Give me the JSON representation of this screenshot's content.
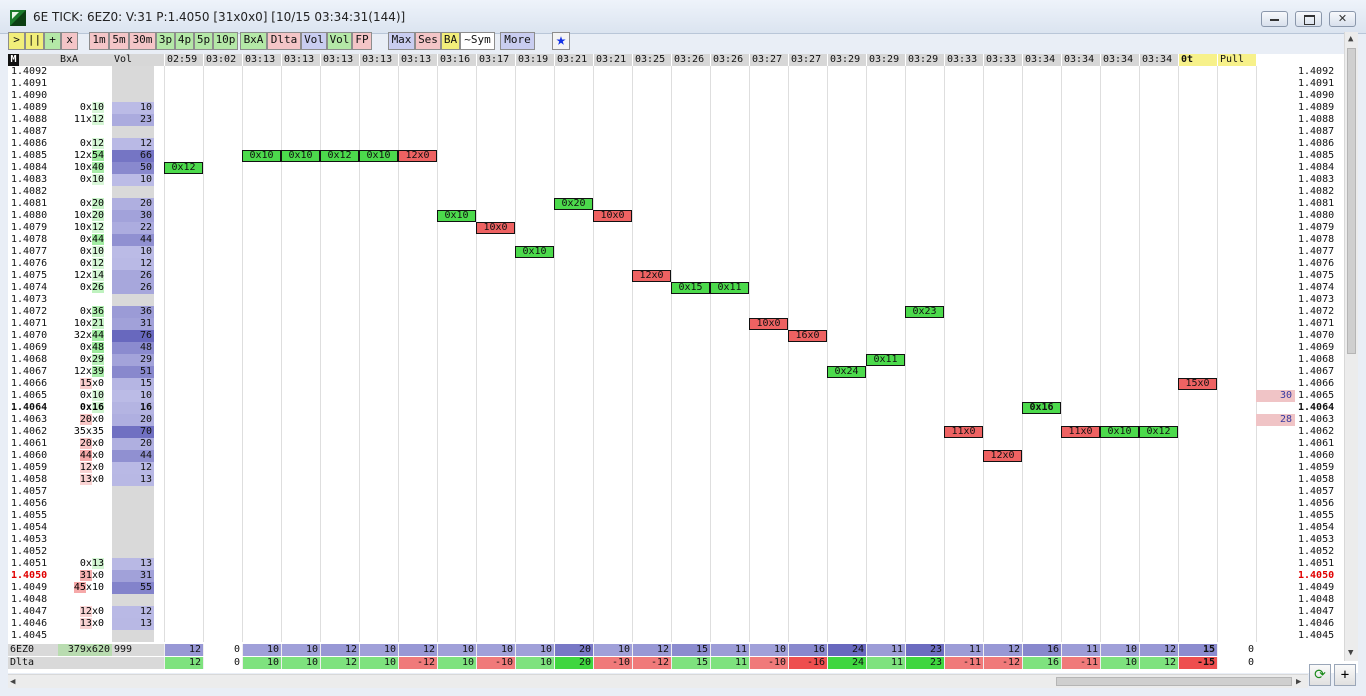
{
  "window": {
    "title": "6E TICK: 6EZ0: V:31 P:1.4050 [31x0x0] [10/15 03:34:31(144)]",
    "close_glyph": "✕"
  },
  "toolbar": [
    {
      "label": ">",
      "color": "yellow"
    },
    {
      "label": "||",
      "color": "yellow"
    },
    {
      "label": "+",
      "color": "green"
    },
    {
      "label": "x",
      "color": "pink"
    },
    {
      "label": "1m",
      "color": "pink"
    },
    {
      "label": "5m",
      "color": "pink"
    },
    {
      "label": "30m",
      "color": "pink"
    },
    {
      "label": "3p",
      "color": "green"
    },
    {
      "label": "4p",
      "color": "green"
    },
    {
      "label": "5p",
      "color": "green"
    },
    {
      "label": "10p",
      "color": "green"
    },
    {
      "label": "BxA",
      "color": "green"
    },
    {
      "label": "Dlta",
      "color": "pink"
    },
    {
      "label": "Vol",
      "color": "blue"
    },
    {
      "label": "Vol",
      "color": "green"
    },
    {
      "label": "FP",
      "color": "pink"
    },
    {
      "label": "Max",
      "color": "blue"
    },
    {
      "label": "Ses",
      "color": "pink"
    },
    {
      "label": "BA",
      "color": "yellow"
    },
    {
      "label": "~Sym",
      "color": "white"
    },
    {
      "label": "More",
      "color": "blue"
    },
    {
      "label": "★",
      "color": "star"
    }
  ],
  "headers": {
    "m": "M",
    "bxa": "BxA",
    "vol": "Vol",
    "times": [
      "02:59",
      "03:02",
      "03:13",
      "03:13",
      "03:13",
      "03:13",
      "03:13",
      "03:16",
      "03:17",
      "03:19",
      "03:21",
      "03:21",
      "03:25",
      "03:26",
      "03:26",
      "03:27",
      "03:27",
      "03:29",
      "03:29",
      "03:29",
      "03:33",
      "03:33",
      "03:34",
      "03:34",
      "03:34",
      "03:34",
      "0t",
      "Pull"
    ]
  },
  "prices": [
    "1.4092",
    "1.4091",
    "1.4090",
    "1.4089",
    "1.4088",
    "1.4087",
    "1.4086",
    "1.4085",
    "1.4084",
    "1.4083",
    "1.4082",
    "1.4081",
    "1.4080",
    "1.4079",
    "1.4078",
    "1.4077",
    "1.4076",
    "1.4075",
    "1.4074",
    "1.4073",
    "1.4072",
    "1.4071",
    "1.4070",
    "1.4069",
    "1.4068",
    "1.4067",
    "1.4066",
    "1.4065",
    "1.4064",
    "1.4063",
    "1.4062",
    "1.4061",
    "1.4060",
    "1.4059",
    "1.4058",
    "1.4057",
    "1.4056",
    "1.4055",
    "1.4054",
    "1.4053",
    "1.4052",
    "1.4051",
    "1.4050",
    "1.4049",
    "1.4048",
    "1.4047",
    "1.4046",
    "1.4045"
  ],
  "current_price": "1.4064",
  "last_price": "1.4050",
  "ladder": [
    {
      "price": "1.4089",
      "bid": "0",
      "ask": "10",
      "vol": "10"
    },
    {
      "price": "1.4088",
      "bid": "11",
      "ask": "12",
      "vol": "23"
    },
    {
      "price": "1.4086",
      "bid": "0",
      "ask": "12",
      "vol": "12"
    },
    {
      "price": "1.4085",
      "bid": "12",
      "ask": "54",
      "vol": "66"
    },
    {
      "price": "1.4084",
      "bid": "10",
      "ask": "40",
      "vol": "50"
    },
    {
      "price": "1.4083",
      "bid": "0",
      "ask": "10",
      "vol": "10"
    },
    {
      "price": "1.4081",
      "bid": "0",
      "ask": "20",
      "vol": "20"
    },
    {
      "price": "1.4080",
      "bid": "10",
      "ask": "20",
      "vol": "30"
    },
    {
      "price": "1.4079",
      "bid": "10",
      "ask": "12",
      "vol": "22"
    },
    {
      "price": "1.4078",
      "bid": "0",
      "ask": "44",
      "vol": "44"
    },
    {
      "price": "1.4077",
      "bid": "0",
      "ask": "10",
      "vol": "10"
    },
    {
      "price": "1.4076",
      "bid": "0",
      "ask": "12",
      "vol": "12"
    },
    {
      "price": "1.4075",
      "bid": "12",
      "ask": "14",
      "vol": "26"
    },
    {
      "price": "1.4074",
      "bid": "0",
      "ask": "26",
      "vol": "26"
    },
    {
      "price": "1.4072",
      "bid": "0",
      "ask": "36",
      "vol": "36"
    },
    {
      "price": "1.4071",
      "bid": "10",
      "ask": "21",
      "vol": "31"
    },
    {
      "price": "1.4070",
      "bid": "32",
      "ask": "44",
      "vol": "76"
    },
    {
      "price": "1.4069",
      "bid": "0",
      "ask": "48",
      "vol": "48"
    },
    {
      "price": "1.4068",
      "bid": "0",
      "ask": "29",
      "vol": "29"
    },
    {
      "price": "1.4067",
      "bid": "12",
      "ask": "39",
      "vol": "51"
    },
    {
      "price": "1.4066",
      "bid": "15",
      "ask": "0",
      "vol": "15"
    },
    {
      "price": "1.4065",
      "bid": "0",
      "ask": "10",
      "vol": "10"
    },
    {
      "price": "1.4064",
      "bid": "0",
      "ask": "16",
      "vol": "16"
    },
    {
      "price": "1.4063",
      "bid": "20",
      "ask": "0",
      "vol": "20"
    },
    {
      "price": "1.4062",
      "bid": "35",
      "ask": "35",
      "vol": "70"
    },
    {
      "price": "1.4061",
      "bid": "20",
      "ask": "0",
      "vol": "20"
    },
    {
      "price": "1.4060",
      "bid": "44",
      "ask": "0",
      "vol": "44"
    },
    {
      "price": "1.4059",
      "bid": "12",
      "ask": "0",
      "vol": "12"
    },
    {
      "price": "1.4058",
      "bid": "13",
      "ask": "0",
      "vol": "13"
    },
    {
      "price": "1.4051",
      "bid": "0",
      "ask": "13",
      "vol": "13"
    },
    {
      "price": "1.4050",
      "bid": "31",
      "ask": "0",
      "vol": "31"
    },
    {
      "price": "1.4049",
      "bid": "45",
      "ask": "10",
      "vol": "55"
    },
    {
      "price": "1.4047",
      "bid": "12",
      "ask": "0",
      "vol": "12"
    },
    {
      "price": "1.4046",
      "bid": "13",
      "ask": "0",
      "vol": "13"
    }
  ],
  "trades": [
    {
      "col": 0,
      "price": "1.4084",
      "label": "0x12",
      "side": "ask"
    },
    {
      "col": 2,
      "price": "1.4085",
      "label": "0x10",
      "side": "ask"
    },
    {
      "col": 3,
      "price": "1.4085",
      "label": "0x10",
      "side": "ask"
    },
    {
      "col": 4,
      "price": "1.4085",
      "label": "0x12",
      "side": "ask"
    },
    {
      "col": 5,
      "price": "1.4085",
      "label": "0x10",
      "side": "ask"
    },
    {
      "col": 6,
      "price": "1.4085",
      "label": "12x0",
      "side": "bid"
    },
    {
      "col": 7,
      "price": "1.4080",
      "label": "0x10",
      "side": "ask"
    },
    {
      "col": 8,
      "price": "1.4079",
      "label": "10x0",
      "side": "bid"
    },
    {
      "col": 9,
      "price": "1.4077",
      "label": "0x10",
      "side": "ask"
    },
    {
      "col": 10,
      "price": "1.4081",
      "label": "0x20",
      "side": "ask"
    },
    {
      "col": 11,
      "price": "1.4080",
      "label": "10x0",
      "side": "bid"
    },
    {
      "col": 12,
      "price": "1.4075",
      "label": "12x0",
      "side": "bid"
    },
    {
      "col": 13,
      "price": "1.4074",
      "label": "0x15",
      "side": "ask"
    },
    {
      "col": 14,
      "price": "1.4074",
      "label": "0x11",
      "side": "ask"
    },
    {
      "col": 15,
      "price": "1.4071",
      "label": "10x0",
      "side": "bid"
    },
    {
      "col": 16,
      "price": "1.4070",
      "label": "16x0",
      "side": "bid"
    },
    {
      "col": 17,
      "price": "1.4067",
      "label": "0x24",
      "side": "ask"
    },
    {
      "col": 18,
      "price": "1.4068",
      "label": "0x11",
      "side": "ask"
    },
    {
      "col": 19,
      "price": "1.4072",
      "label": "0x23",
      "side": "ask"
    },
    {
      "col": 20,
      "price": "1.4062",
      "label": "11x0",
      "side": "bid"
    },
    {
      "col": 21,
      "price": "1.4060",
      "label": "12x0",
      "side": "bid"
    },
    {
      "col": 22,
      "price": "1.4064",
      "label": "0x16",
      "side": "ask",
      "bold": true
    },
    {
      "col": 23,
      "price": "1.4062",
      "label": "11x0",
      "side": "bid"
    },
    {
      "col": 24,
      "price": "1.4062",
      "label": "0x10",
      "side": "ask"
    },
    {
      "col": 25,
      "price": "1.4062",
      "label": "0x12",
      "side": "ask"
    },
    {
      "col": 26,
      "price": "1.4066",
      "label": "15x0",
      "side": "bid"
    }
  ],
  "right_book": [
    {
      "price": "1.4065",
      "size": "30"
    },
    {
      "price": "1.4063",
      "size": "28"
    }
  ],
  "summary": {
    "sym_label": "6EZ0",
    "sym_bxa": "379x620",
    "sym_vol": "999",
    "dlta_label": "Dlta",
    "vol_row": [
      "12",
      "0",
      "10",
      "10",
      "12",
      "10",
      "12",
      "10",
      "10",
      "10",
      "20",
      "10",
      "12",
      "15",
      "11",
      "10",
      "16",
      "24",
      "11",
      "23",
      "11",
      "12",
      "16",
      "11",
      "10",
      "12",
      "15",
      "0"
    ],
    "delta_row": [
      "12",
      "0",
      "10",
      "10",
      "12",
      "10",
      "-12",
      "10",
      "-10",
      "10",
      "20",
      "-10",
      "-12",
      "15",
      "11",
      "-10",
      "-16",
      "24",
      "11",
      "23",
      "-11",
      "-12",
      "16",
      "-11",
      "10",
      "12",
      "-15",
      "0"
    ]
  },
  "colors": {
    "ask_green": "#4cda4c",
    "bid_red": "#ee6262",
    "vol_blue": "#b9b9e0",
    "current_price_red": "#e00000",
    "header_yellow": "#f7f18a"
  }
}
